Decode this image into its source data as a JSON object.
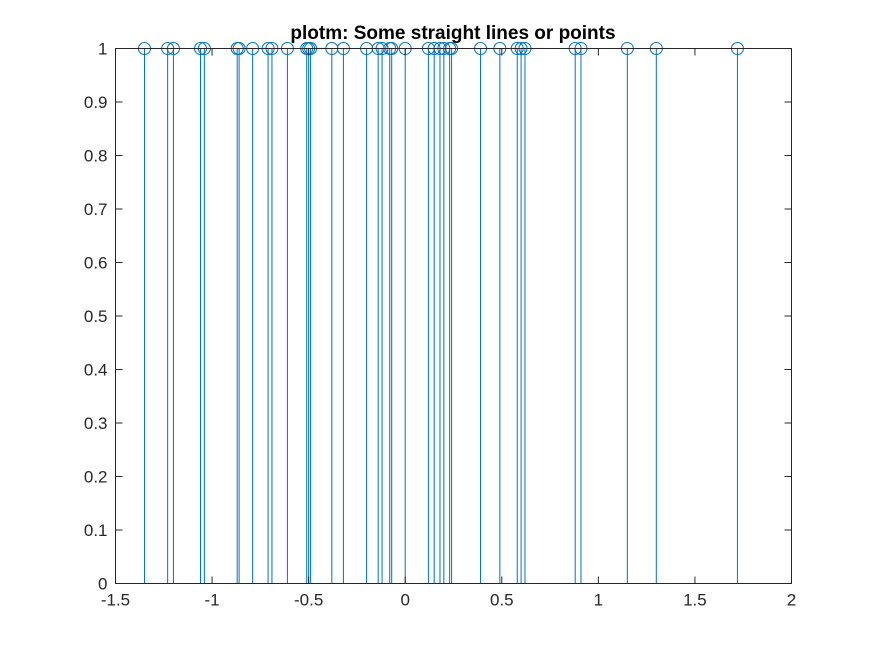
{
  "chart_data": {
    "type": "stem",
    "title": "plotm: Some straight lines or points",
    "xlabel": "",
    "ylabel": "",
    "xlim": [
      -1.5,
      2
    ],
    "ylim": [
      0,
      1
    ],
    "grid": false,
    "series_color": "#0072BD",
    "axis_color": "#262626",
    "marker": "circle",
    "x_ticks": [
      -1.5,
      -1,
      -0.5,
      0,
      0.5,
      1,
      1.5,
      2
    ],
    "x_tick_labels": [
      "-1.5",
      "-1",
      "-0.5",
      "0",
      "0.5",
      "1",
      "1.5",
      "2"
    ],
    "y_ticks": [
      0,
      0.1,
      0.2,
      0.3,
      0.4,
      0.5,
      0.6,
      0.7,
      0.8,
      0.9,
      1
    ],
    "y_tick_labels": [
      "0",
      "0.1",
      "0.2",
      "0.3",
      "0.4",
      "0.5",
      "0.6",
      "0.7",
      "0.8",
      "0.9",
      "1"
    ],
    "x": [
      -1.35,
      -1.23,
      -1.2,
      -1.06,
      -1.04,
      -0.87,
      -0.86,
      -0.79,
      -0.71,
      -0.69,
      -0.61,
      -0.51,
      -0.5,
      -0.49,
      -0.38,
      -0.32,
      -0.2,
      -0.14,
      -0.12,
      -0.08,
      -0.07,
      0.0,
      0.12,
      0.15,
      0.18,
      0.2,
      0.23,
      0.24,
      0.39,
      0.49,
      0.58,
      0.6,
      0.62,
      0.88,
      0.91,
      1.15,
      1.3,
      1.72
    ],
    "y": [
      1,
      1,
      1,
      1,
      1,
      1,
      1,
      1,
      1,
      1,
      1,
      1,
      1,
      1,
      1,
      1,
      1,
      1,
      1,
      1,
      1,
      1,
      1,
      1,
      1,
      1,
      1,
      1,
      1,
      1,
      1,
      1,
      1,
      1,
      1,
      1,
      1,
      1
    ]
  }
}
